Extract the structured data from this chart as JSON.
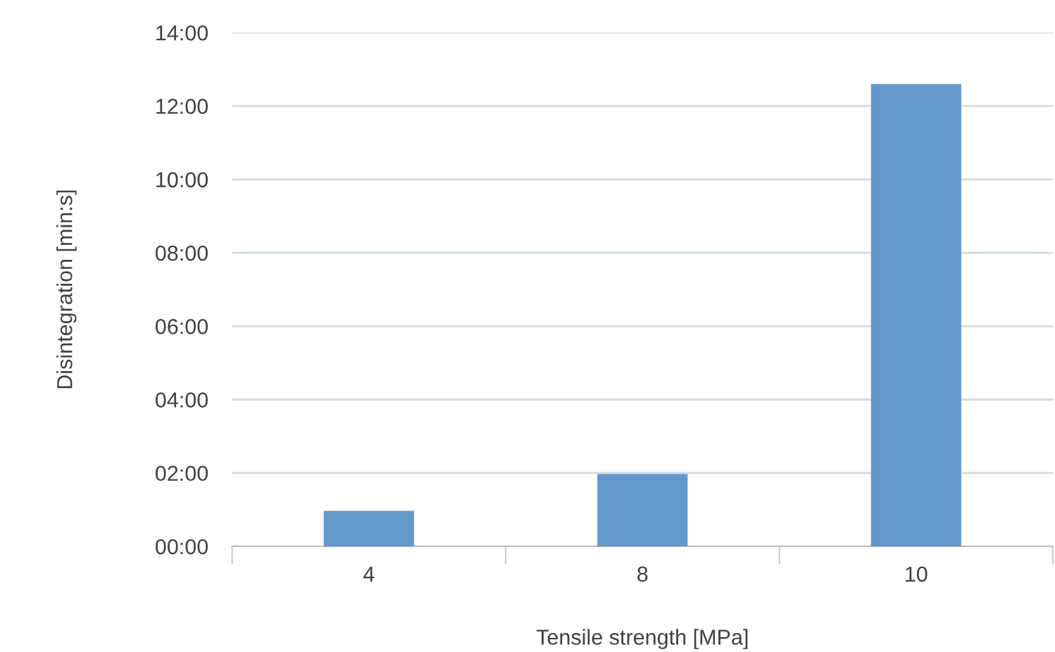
{
  "chart_data": {
    "type": "bar",
    "xlabel": "Tensile strength [MPa]",
    "ylabel": "Disintegration [min:s]",
    "categories": [
      "4",
      "8",
      "10"
    ],
    "values": [
      0.97,
      1.97,
      12.6
    ],
    "color": "#6399c9",
    "ylim": [
      0,
      14
    ],
    "yticks": [
      {
        "value": 0,
        "label": "00:00"
      },
      {
        "value": 2,
        "label": "02:00"
      },
      {
        "value": 4,
        "label": "04:00"
      },
      {
        "value": 6,
        "label": "06:00"
      },
      {
        "value": 8,
        "label": "08:00"
      },
      {
        "value": 10,
        "label": "10:00"
      },
      {
        "value": 12,
        "label": "12:00"
      },
      {
        "value": 14,
        "label": "14:00"
      }
    ],
    "grid": "y",
    "legend": false
  }
}
